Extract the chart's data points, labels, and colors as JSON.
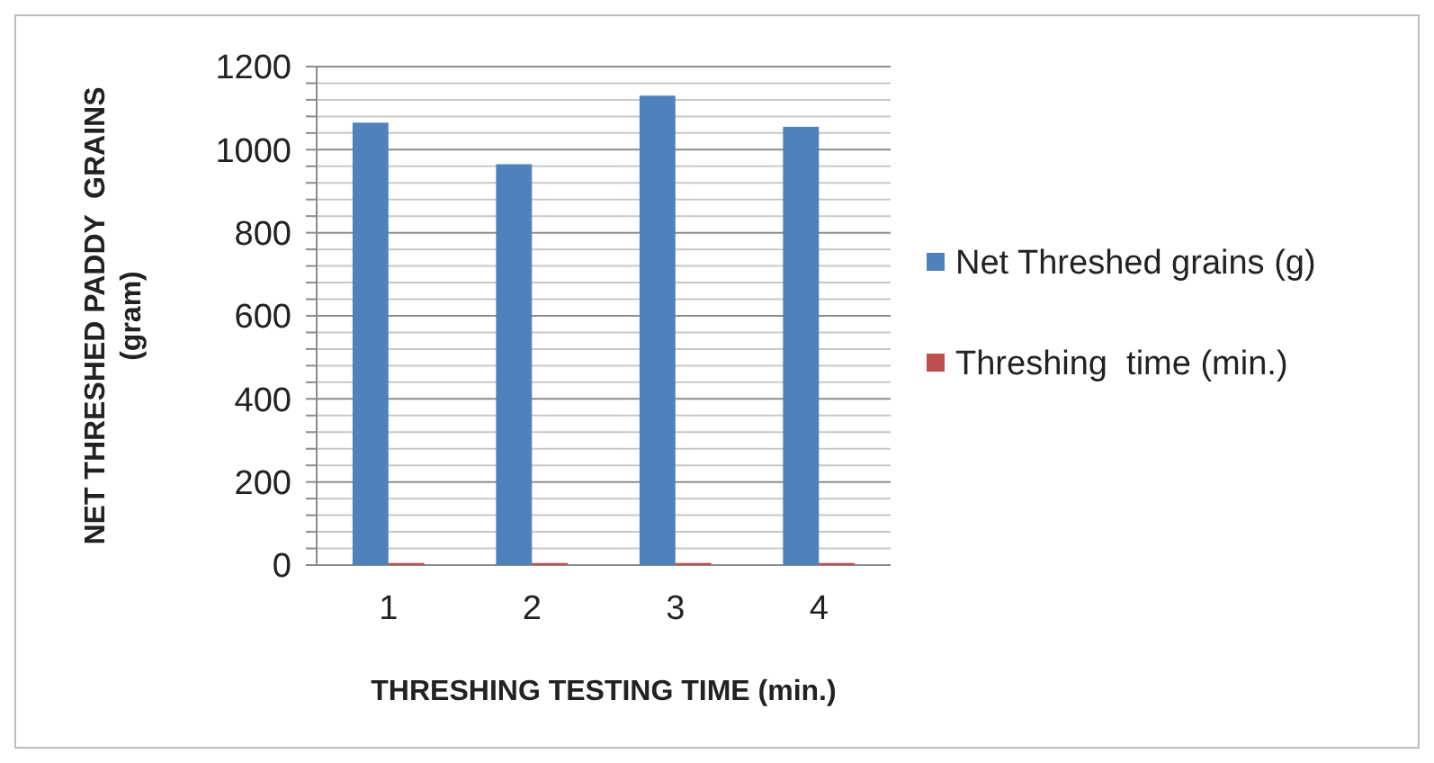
{
  "chart_data": {
    "type": "bar",
    "xlabel": "THRESHING TESTING TIME (min.)",
    "ylabel": "NET THRESHED PADDY  GRAINS (gram)",
    "categories": [
      "1",
      "2",
      "3",
      "4"
    ],
    "series": [
      {
        "name": "Net Threshed grains (g)",
        "color": "#4f81bd",
        "values": [
          1065,
          965,
          1130,
          1055
        ]
      },
      {
        "name": "Threshing  time (min.)",
        "color": "#c0504d",
        "values": [
          5,
          5,
          5,
          5
        ]
      }
    ],
    "ylim": [
      0,
      1200
    ],
    "yticks": [
      0,
      {
        "value": 40,
        "label": null
      },
      {
        "value": 80,
        "label": null
      },
      {
        "value": 120,
        "label": null
      },
      {
        "value": 160,
        "label": null
      },
      200,
      {
        "value": 240,
        "label": null
      },
      {
        "value": 280,
        "label": null
      },
      {
        "value": 320,
        "label": null
      },
      {
        "value": 360,
        "label": null
      },
      400,
      {
        "value": 440,
        "label": null
      },
      {
        "value": 480,
        "label": null
      },
      {
        "value": 520,
        "label": null
      },
      {
        "value": 560,
        "label": null
      },
      600,
      {
        "value": 640,
        "label": null
      },
      {
        "value": 680,
        "label": null
      },
      {
        "value": 720,
        "label": null
      },
      {
        "value": 760,
        "label": null
      },
      800,
      {
        "value": 840,
        "label": null
      },
      {
        "value": 880,
        "label": null
      },
      {
        "value": 920,
        "label": null
      },
      {
        "value": 960,
        "label": null
      },
      1000,
      {
        "value": 1040,
        "label": null
      },
      {
        "value": 1080,
        "label": null
      },
      {
        "value": 1120,
        "label": null
      },
      {
        "value": 1160,
        "label": null
      },
      1200
    ],
    "grid": true,
    "legend": "right"
  }
}
